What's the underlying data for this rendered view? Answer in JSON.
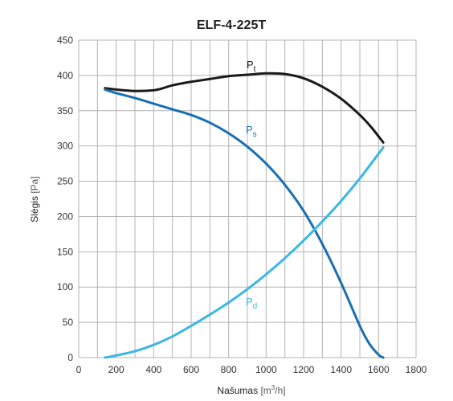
{
  "chart_data": {
    "type": "line",
    "title": "ELF-4-225T",
    "xlabel": "Našumas",
    "xlabel_unit": "[m3/h]",
    "xlabel_unit_parts": [
      "[m",
      "3",
      "/h]"
    ],
    "ylabel": "Slėgis",
    "ylabel_unit": "[Pa]",
    "xlim": [
      0,
      1800
    ],
    "ylim": [
      0,
      450
    ],
    "x_ticks": [
      0,
      200,
      400,
      600,
      800,
      1000,
      1200,
      1400,
      1600,
      1800
    ],
    "y_ticks": [
      0,
      50,
      100,
      150,
      200,
      250,
      300,
      350,
      400,
      450
    ],
    "x_grid": [
      0,
      100,
      200,
      300,
      400,
      500,
      600,
      700,
      800,
      900,
      1000,
      1100,
      1200,
      1300,
      1400,
      1500,
      1600,
      1700,
      1800
    ],
    "y_grid": [
      0,
      50,
      100,
      150,
      200,
      250,
      300,
      350,
      400,
      450
    ],
    "grid": true,
    "series": [
      {
        "name": "Pt",
        "label_main": "P",
        "label_sub": "t",
        "color": "#1a1a1a",
        "x": [
          140,
          200,
          300,
          400,
          450,
          500,
          600,
          700,
          800,
          900,
          1000,
          1100,
          1200,
          1300,
          1400,
          1500,
          1560,
          1625
        ],
        "y": [
          382,
          380,
          378,
          379,
          382,
          386,
          391,
          395,
          399,
          401,
          403,
          402,
          396,
          384,
          367,
          344,
          327,
          305
        ]
      },
      {
        "name": "Ps",
        "label_main": "P",
        "label_sub": "s",
        "color": "#1a6fb3",
        "x": [
          140,
          200,
          300,
          400,
          500,
          600,
          700,
          800,
          900,
          1000,
          1100,
          1200,
          1300,
          1400,
          1500,
          1550,
          1600,
          1625
        ],
        "y": [
          380,
          375,
          368,
          360,
          352,
          344,
          333,
          318,
          299,
          275,
          245,
          208,
          161,
          106,
          45,
          20,
          4,
          0
        ]
      },
      {
        "name": "Pd",
        "label_main": "P",
        "label_sub": "d",
        "color": "#3bb7e6",
        "x": [
          140,
          200,
          300,
          400,
          500,
          600,
          700,
          800,
          900,
          1000,
          1100,
          1200,
          1300,
          1400,
          1500,
          1600,
          1625
        ],
        "y": [
          0,
          3,
          9,
          18,
          30,
          45,
          61,
          78,
          97,
          118,
          141,
          166,
          193,
          222,
          254,
          289,
          298
        ]
      }
    ]
  },
  "colors": {
    "grid": "#b3b3b3",
    "axis_text": "#333333"
  }
}
